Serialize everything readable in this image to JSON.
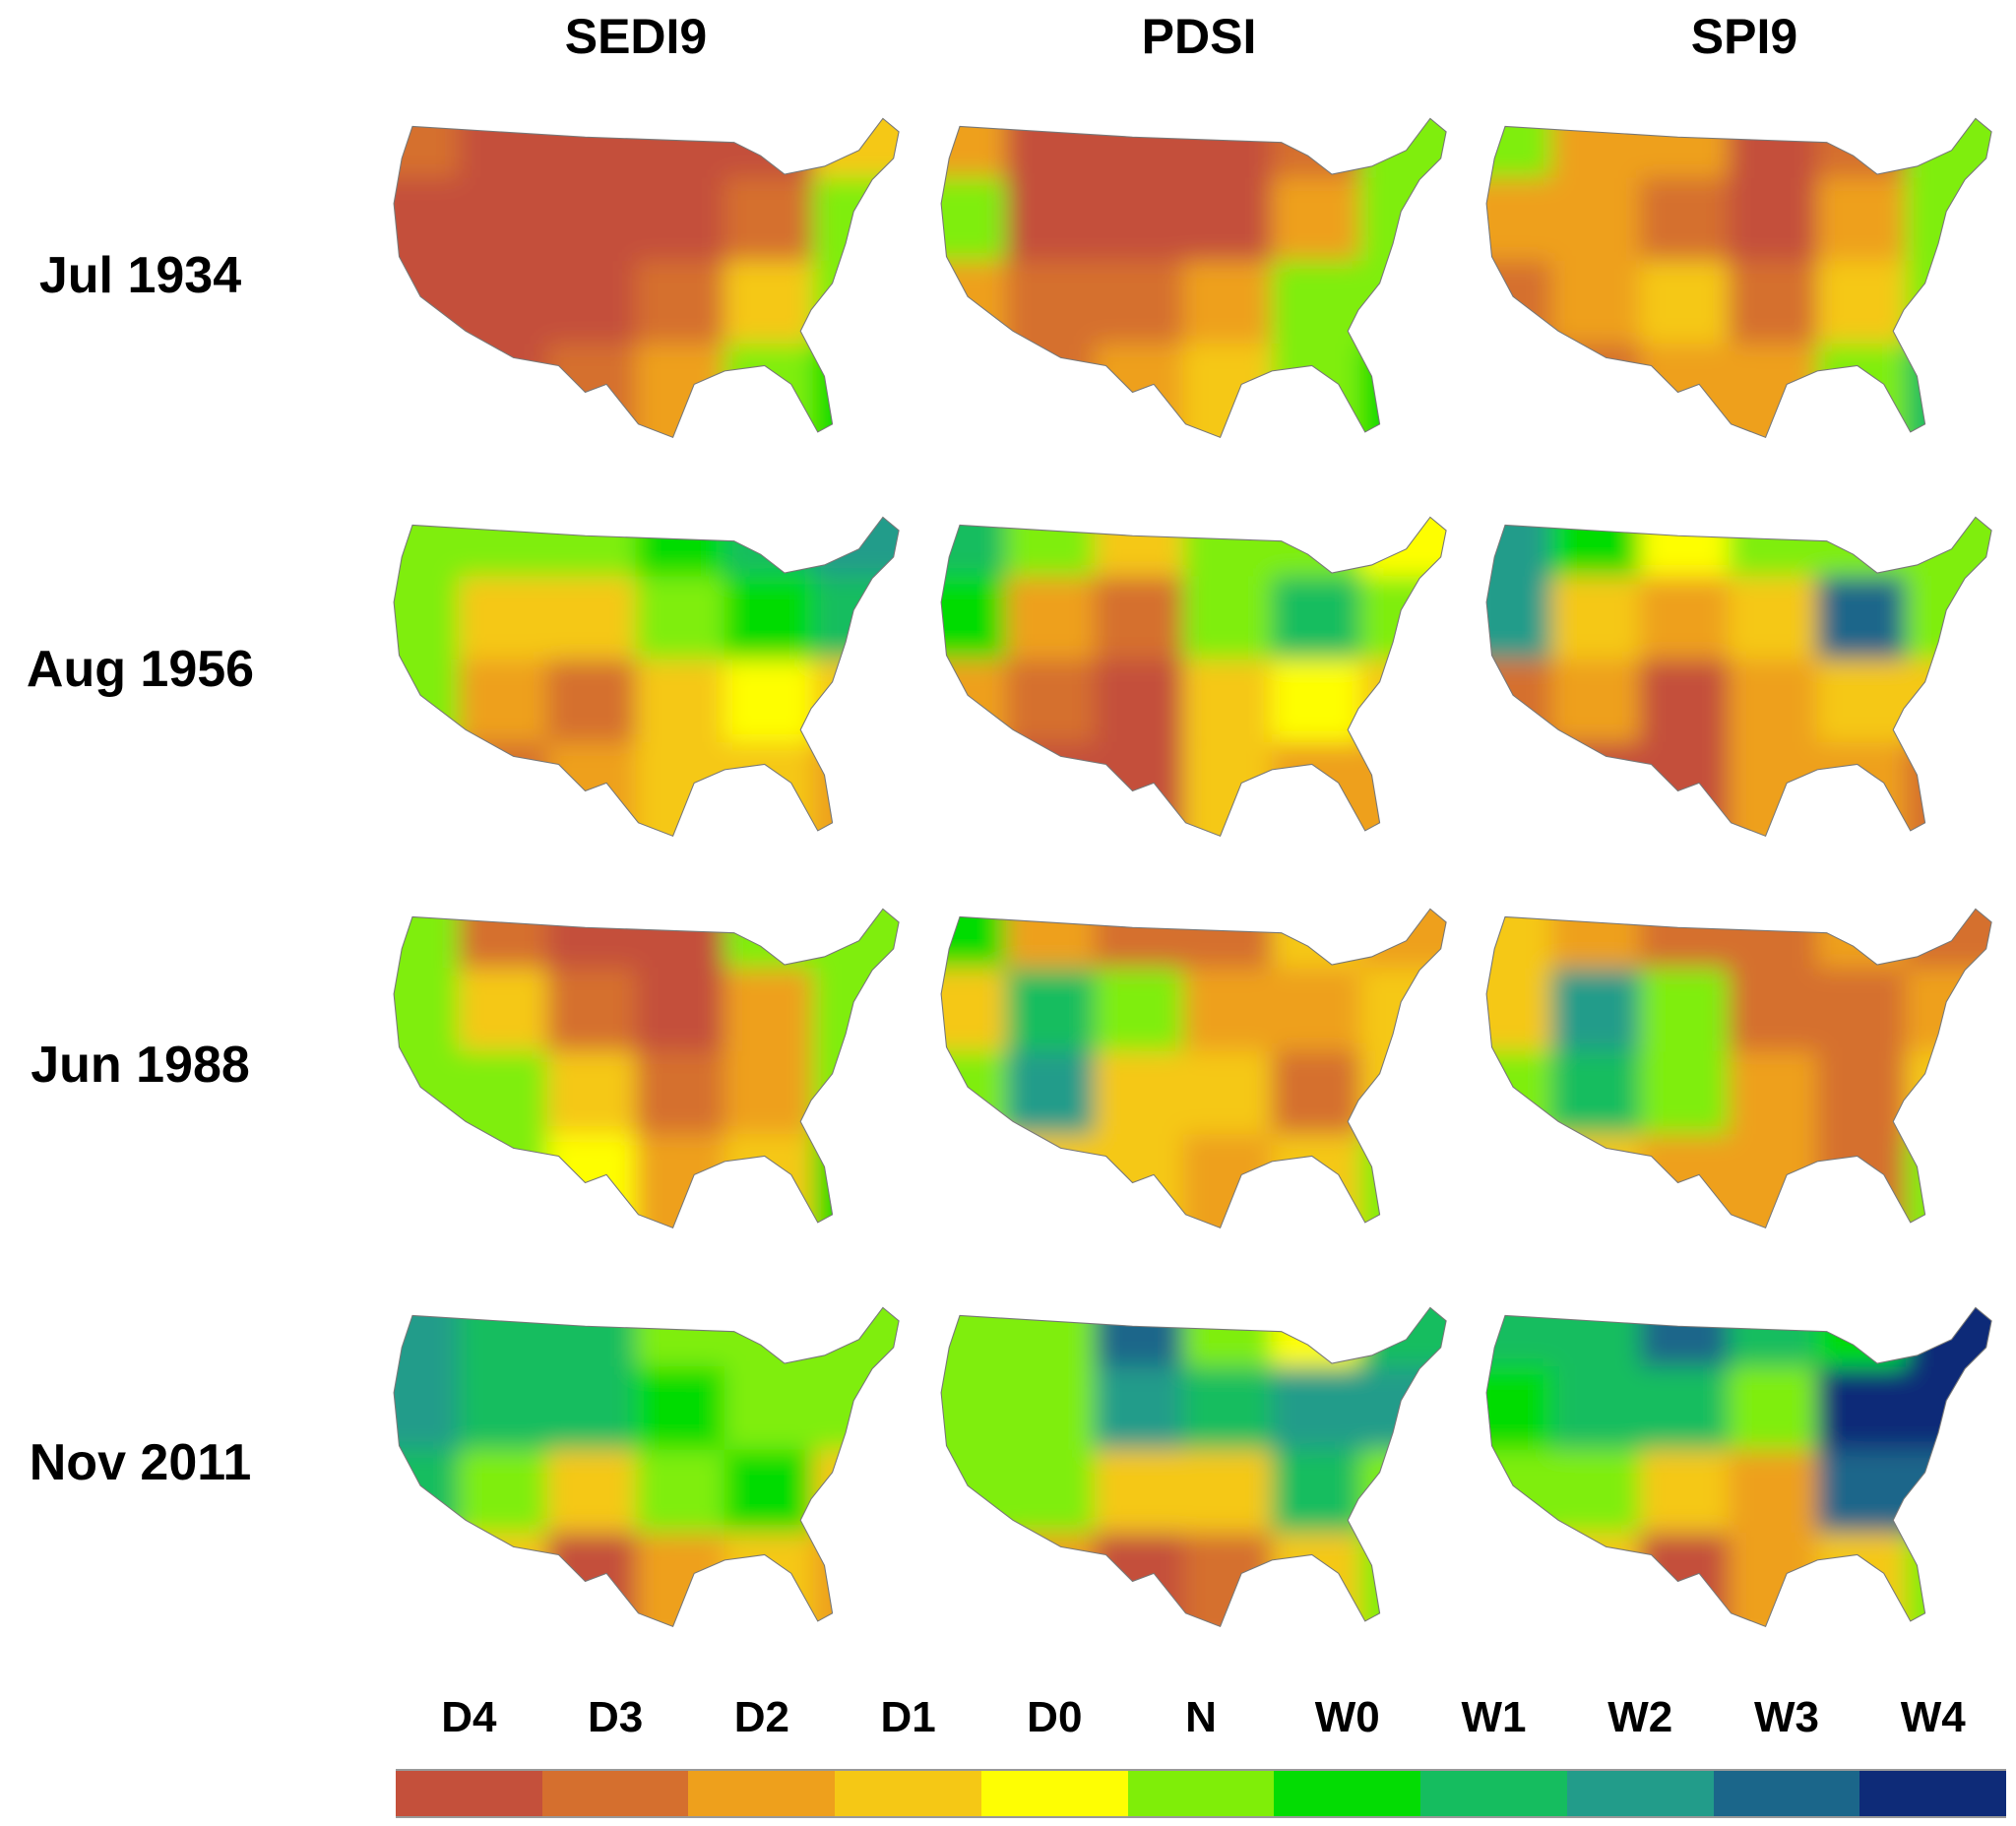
{
  "columns": [
    "SEDI9",
    "PDSI",
    "SPI9"
  ],
  "rows": [
    "Jul 1934",
    "Aug 1956",
    "Jun 1988",
    "Nov 2011"
  ],
  "legend": {
    "categories": [
      "D4",
      "D3",
      "D2",
      "D1",
      "D0",
      "N",
      "W0",
      "W1",
      "W2",
      "W3",
      "W4"
    ],
    "colors": {
      "D4": "#c4503b",
      "D3": "#d56f2e",
      "D2": "#eea01c",
      "D1": "#f5c815",
      "D0": "#fefe03",
      "N": "#7fee08",
      "W0": "#03dc03",
      "W1": "#15bd5f",
      "W2": "#229c8a",
      "W3": "#1b668a",
      "W4": "#0e2b78"
    }
  },
  "maps": [
    [
      [
        [
          "D3",
          "D4",
          "D4",
          "D4",
          "D4",
          "D1"
        ],
        [
          "D4",
          "D4",
          "D4",
          "D4",
          "D3",
          "N"
        ],
        [
          "D4",
          "D4",
          "D4",
          "D3",
          "D1",
          "N"
        ],
        [
          "D3",
          "D4",
          "D3",
          "D2",
          "N",
          "W0"
        ]
      ],
      [
        [
          "D2",
          "D4",
          "D4",
          "D4",
          "D3",
          "N"
        ],
        [
          "N",
          "D4",
          "D4",
          "D4",
          "D2",
          "N"
        ],
        [
          "D2",
          "D3",
          "D3",
          "D2",
          "N",
          "N"
        ],
        [
          "D2",
          "D3",
          "D2",
          "D1",
          "N",
          "W0"
        ]
      ],
      [
        [
          "N",
          "D2",
          "D2",
          "D4",
          "D3",
          "N"
        ],
        [
          "D2",
          "D2",
          "D3",
          "D4",
          "D2",
          "N"
        ],
        [
          "D3",
          "D2",
          "D1",
          "D3",
          "D1",
          "N"
        ],
        [
          "D3",
          "D3",
          "D2",
          "D2",
          "N",
          "W1"
        ]
      ]
    ],
    [
      [
        [
          "N",
          "N",
          "N",
          "W0",
          "W1",
          "W2"
        ],
        [
          "N",
          "D1",
          "D1",
          "N",
          "W0",
          "W1"
        ],
        [
          "N",
          "D2",
          "D3",
          "D1",
          "D0",
          "D1"
        ],
        [
          "D2",
          "D3",
          "D2",
          "D1",
          "D1",
          "D2"
        ]
      ],
      [
        [
          "W1",
          "N",
          "D1",
          "N",
          "N",
          "D0"
        ],
        [
          "W0",
          "D2",
          "D3",
          "N",
          "W1",
          "N"
        ],
        [
          "D2",
          "D3",
          "D4",
          "D1",
          "D0",
          "D1"
        ],
        [
          "D2",
          "D4",
          "D4",
          "D1",
          "D2",
          "D2"
        ]
      ],
      [
        [
          "W2",
          "W0",
          "D0",
          "N",
          "N",
          "N"
        ],
        [
          "W2",
          "D1",
          "D2",
          "D1",
          "W3",
          "N"
        ],
        [
          "D3",
          "D2",
          "D4",
          "D2",
          "D1",
          "D1"
        ],
        [
          "D4",
          "D4",
          "D4",
          "D2",
          "D2",
          "D3"
        ]
      ]
    ],
    [
      [
        [
          "N",
          "D3",
          "D4",
          "D4",
          "N",
          "N"
        ],
        [
          "N",
          "D1",
          "D3",
          "D4",
          "D2",
          "N"
        ],
        [
          "N",
          "N",
          "D1",
          "D3",
          "D2",
          "N"
        ],
        [
          "N",
          "N",
          "D0",
          "D2",
          "D1",
          "W0"
        ]
      ],
      [
        [
          "W0",
          "D2",
          "D3",
          "D3",
          "D1",
          "D2"
        ],
        [
          "D1",
          "W1",
          "N",
          "D2",
          "D2",
          "D1"
        ],
        [
          "N",
          "W2",
          "D1",
          "D1",
          "D3",
          "D1"
        ],
        [
          "D1",
          "D1",
          "D1",
          "D2",
          "D1",
          "N"
        ]
      ],
      [
        [
          "D1",
          "D2",
          "D3",
          "D3",
          "D2",
          "D3"
        ],
        [
          "D1",
          "W2",
          "N",
          "D3",
          "D3",
          "D2"
        ],
        [
          "N",
          "W1",
          "N",
          "D2",
          "D3",
          "D1"
        ],
        [
          "N",
          "D1",
          "D2",
          "D2",
          "D3",
          "N"
        ]
      ]
    ],
    [
      [
        [
          "W2",
          "W1",
          "W1",
          "N",
          "N",
          "N"
        ],
        [
          "W2",
          "W1",
          "W1",
          "W0",
          "N",
          "N"
        ],
        [
          "W1",
          "N",
          "D1",
          "N",
          "W0",
          "D1"
        ],
        [
          "N",
          "D1",
          "D4",
          "D2",
          "D1",
          "D2"
        ]
      ],
      [
        [
          "N",
          "N",
          "W3",
          "N",
          "D0",
          "W1"
        ],
        [
          "N",
          "N",
          "W2",
          "W1",
          "W2",
          "W2"
        ],
        [
          "N",
          "N",
          "D1",
          "D1",
          "W1",
          "N"
        ],
        [
          "N",
          "D2",
          "D4",
          "D3",
          "D1",
          "N"
        ]
      ],
      [
        [
          "W1",
          "W1",
          "W3",
          "W1",
          "W0",
          "W4"
        ],
        [
          "W0",
          "W1",
          "W1",
          "N",
          "W4",
          "W4"
        ],
        [
          "N",
          "N",
          "D1",
          "D2",
          "W3",
          "W3"
        ],
        [
          "N",
          "D1",
          "D4",
          "D2",
          "D1",
          "N"
        ]
      ]
    ]
  ]
}
